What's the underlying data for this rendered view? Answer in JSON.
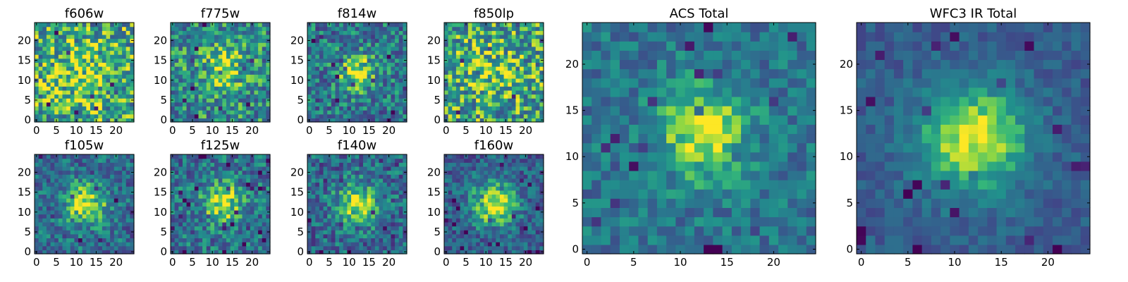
{
  "colormap": "viridis",
  "colors": {
    "background": "#ffffff",
    "axis": "#000000",
    "viridis_low": "#440154",
    "viridis_high": "#fde725"
  },
  "chart_data": [
    {
      "type": "heatmap",
      "title": "f606w",
      "size": 25,
      "noise": 0.34,
      "base": 0.66,
      "peak": 0.18,
      "center": [
        11.5,
        12
      ],
      "sigma": 6,
      "seed": 11,
      "bright_spot": [
        13.5,
        4,
        0.18
      ],
      "xticks": [
        "0",
        "5",
        "10",
        "15",
        "20"
      ],
      "yticks": [
        "0",
        "5",
        "10",
        "15",
        "20"
      ]
    },
    {
      "type": "heatmap",
      "title": "f775w",
      "size": 25,
      "noise": 0.3,
      "base": 0.56,
      "peak": 0.28,
      "center": [
        12.5,
        13
      ],
      "sigma": 4.5,
      "seed": 23,
      "xticks": [
        "0",
        "5",
        "10",
        "15",
        "20"
      ],
      "yticks": [
        "0",
        "5",
        "10",
        "15",
        "20"
      ]
    },
    {
      "type": "heatmap",
      "title": "f814w",
      "size": 25,
      "noise": 0.28,
      "base": 0.48,
      "peak": 0.48,
      "center": [
        12,
        12
      ],
      "sigma": 3.2,
      "seed": 37,
      "xticks": [
        "0",
        "5",
        "10",
        "15",
        "20"
      ],
      "yticks": [
        "0",
        "5",
        "10",
        "15",
        "20"
      ]
    },
    {
      "type": "heatmap",
      "title": "f850lp",
      "size": 25,
      "noise": 0.34,
      "base": 0.64,
      "peak": 0.18,
      "center": [
        12,
        12
      ],
      "sigma": 5,
      "seed": 41,
      "xticks": [
        "0",
        "5",
        "10",
        "15",
        "20"
      ],
      "yticks": [
        "0",
        "5",
        "10",
        "15",
        "20"
      ]
    },
    {
      "type": "heatmap",
      "title": "f105w",
      "size": 25,
      "noise": 0.24,
      "base": 0.44,
      "peak": 0.55,
      "center": [
        12.5,
        12
      ],
      "sigma": 3.6,
      "seed": 53,
      "xticks": [
        "0",
        "5",
        "10",
        "15",
        "20"
      ],
      "yticks": [
        "0",
        "5",
        "10",
        "15",
        "20"
      ]
    },
    {
      "type": "heatmap",
      "title": "f125w",
      "size": 25,
      "noise": 0.26,
      "base": 0.46,
      "peak": 0.52,
      "center": [
        12.5,
        12.5
      ],
      "sigma": 3.4,
      "seed": 67,
      "xticks": [
        "0",
        "5",
        "10",
        "15",
        "20"
      ],
      "yticks": [
        "0",
        "5",
        "10",
        "15",
        "20"
      ]
    },
    {
      "type": "heatmap",
      "title": "f140w",
      "size": 25,
      "noise": 0.26,
      "base": 0.42,
      "peak": 0.55,
      "center": [
        12,
        12
      ],
      "sigma": 3.6,
      "seed": 79,
      "xticks": [
        "0",
        "5",
        "10",
        "15",
        "20"
      ],
      "yticks": [
        "0",
        "5",
        "10",
        "15",
        "20"
      ]
    },
    {
      "type": "heatmap",
      "title": "f160w",
      "size": 25,
      "noise": 0.22,
      "base": 0.38,
      "peak": 0.6,
      "center": [
        12,
        12
      ],
      "sigma": 4,
      "seed": 83,
      "xticks": [
        "0",
        "5",
        "10",
        "15",
        "20"
      ],
      "yticks": [
        "0",
        "5",
        "10",
        "15",
        "20"
      ]
    },
    {
      "type": "heatmap",
      "title": "ACS Total",
      "size": 25,
      "noise": 0.18,
      "base": 0.48,
      "peak": 0.5,
      "center": [
        12.5,
        12.5
      ],
      "sigma": 3.3,
      "seed": 97,
      "xticks": [
        "0",
        "5",
        "10",
        "15",
        "20"
      ],
      "yticks": [
        "0",
        "5",
        "10",
        "15",
        "20"
      ]
    },
    {
      "type": "heatmap",
      "title": "WFC3 IR Total",
      "size": 25,
      "noise": 0.12,
      "base": 0.36,
      "peak": 0.62,
      "center": [
        12,
        12
      ],
      "sigma": 4.2,
      "seed": 101,
      "xticks": [
        "0",
        "5",
        "10",
        "15",
        "20"
      ],
      "yticks": [
        "0",
        "5",
        "10",
        "15",
        "20"
      ]
    }
  ]
}
